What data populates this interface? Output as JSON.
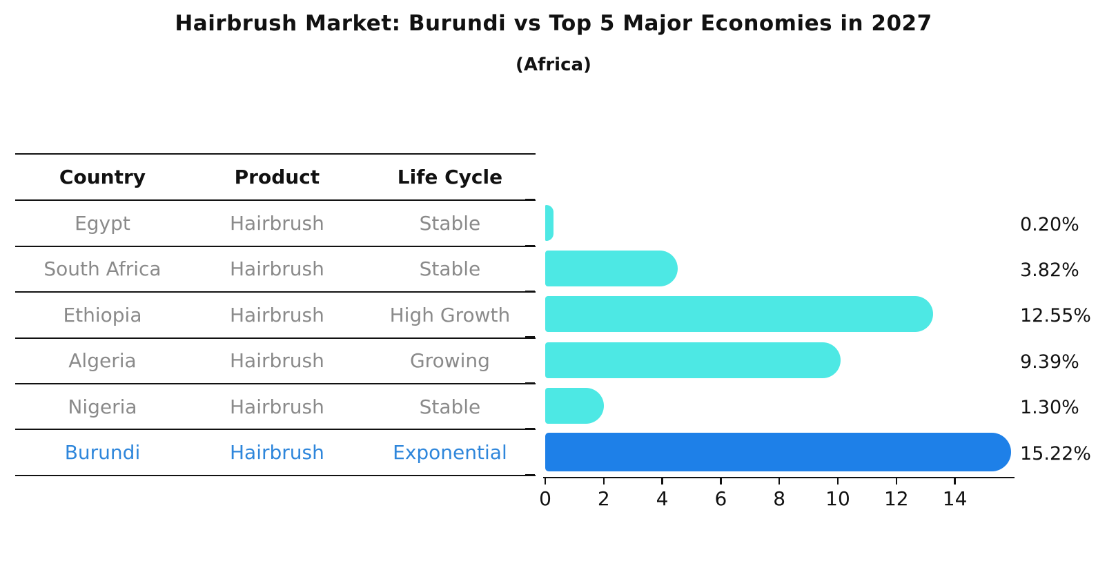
{
  "title": "Hairbrush Market: Burundi vs Top 5 Major Economies in 2027",
  "subtitle": "(Africa)",
  "table": {
    "headers": [
      "Country",
      "Product",
      "Life Cycle"
    ],
    "rows": [
      {
        "country": "Egypt",
        "product": "Hairbrush",
        "life_cycle": "Stable",
        "share_label": "0.20%",
        "highlighted": false
      },
      {
        "country": "South Africa",
        "product": "Hairbrush",
        "life_cycle": "Stable",
        "share_label": "3.82%",
        "highlighted": false
      },
      {
        "country": "Ethiopia",
        "product": "Hairbrush",
        "life_cycle": "High Growth",
        "share_label": "12.55%",
        "highlighted": false
      },
      {
        "country": "Algeria",
        "product": "Hairbrush",
        "life_cycle": "Growing",
        "share_label": "9.39%",
        "highlighted": false
      },
      {
        "country": "Nigeria",
        "product": "Hairbrush",
        "life_cycle": "Stable",
        "share_label": "1.30%",
        "highlighted": false
      },
      {
        "country": "Burundi",
        "product": "Hairbrush",
        "life_cycle": "Exponential",
        "share_label": "15.22%",
        "highlighted": true
      }
    ]
  },
  "chart_data": {
    "type": "bar",
    "orientation": "horizontal",
    "title": "Hairbrush Market: Burundi vs Top 5 Major Economies in 2027",
    "subtitle": "(Africa)",
    "categories": [
      "Egypt",
      "South Africa",
      "Ethiopia",
      "Algeria",
      "Nigeria",
      "Burundi"
    ],
    "values": [
      0.2,
      3.82,
      12.55,
      9.39,
      1.3,
      15.22
    ],
    "value_labels": [
      "0.20%",
      "3.82%",
      "12.55%",
      "9.39%",
      "1.30%",
      "15.22%"
    ],
    "unit": "%",
    "xticks": [
      0,
      2,
      4,
      6,
      8,
      10,
      12,
      14
    ],
    "xlim": [
      0,
      16
    ],
    "grid": false,
    "legend": "none",
    "bar_color": "#4de8e4",
    "highlight_color": "#1e80e8",
    "highlight_index": 5,
    "highlight_border_style": "dotted"
  },
  "colors": {
    "background": "#ffffff",
    "text_primary": "#111111",
    "text_muted": "#8a8a8a",
    "highlight_text": "#2e86db",
    "bar_default": "#4de8e4",
    "bar_highlight": "#1e80e8"
  }
}
